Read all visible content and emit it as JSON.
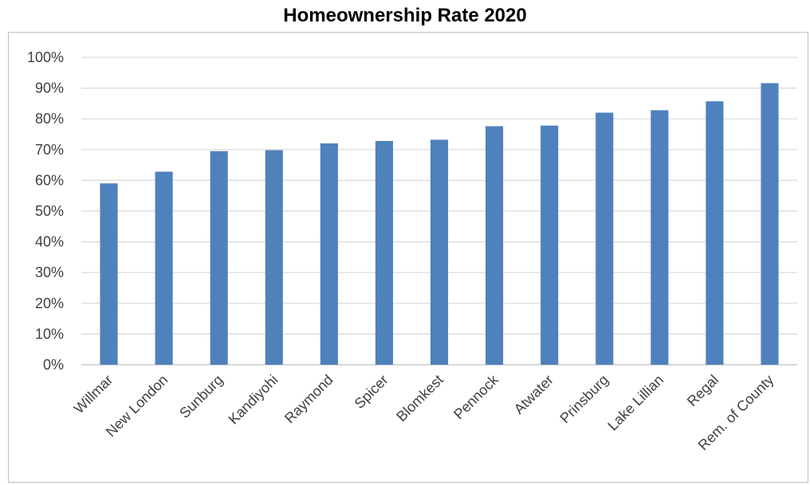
{
  "chart_data": {
    "type": "bar",
    "title": "Homeownership Rate 2020",
    "xlabel": "",
    "ylabel": "",
    "categories": [
      "Willmar",
      "New London",
      "Sunburg",
      "Kandiyohi",
      "Raymond",
      "Spicer",
      "Blomkest",
      "Pennock",
      "Atwater",
      "Prinsburg",
      "Lake Lillian",
      "Regal",
      "Rem. of County"
    ],
    "values": [
      59,
      62.8,
      69.5,
      69.8,
      72,
      72.8,
      73.2,
      77.6,
      77.8,
      82,
      82.8,
      85.7,
      91.6
    ],
    "ylim": [
      0,
      100
    ],
    "yticks": [
      "0%",
      "10%",
      "20%",
      "30%",
      "40%",
      "50%",
      "60%",
      "70%",
      "80%",
      "90%",
      "100%"
    ],
    "grid": true,
    "legend": "none",
    "bar_color": "#4f81bd",
    "grid_color": "#d9d9d9"
  }
}
